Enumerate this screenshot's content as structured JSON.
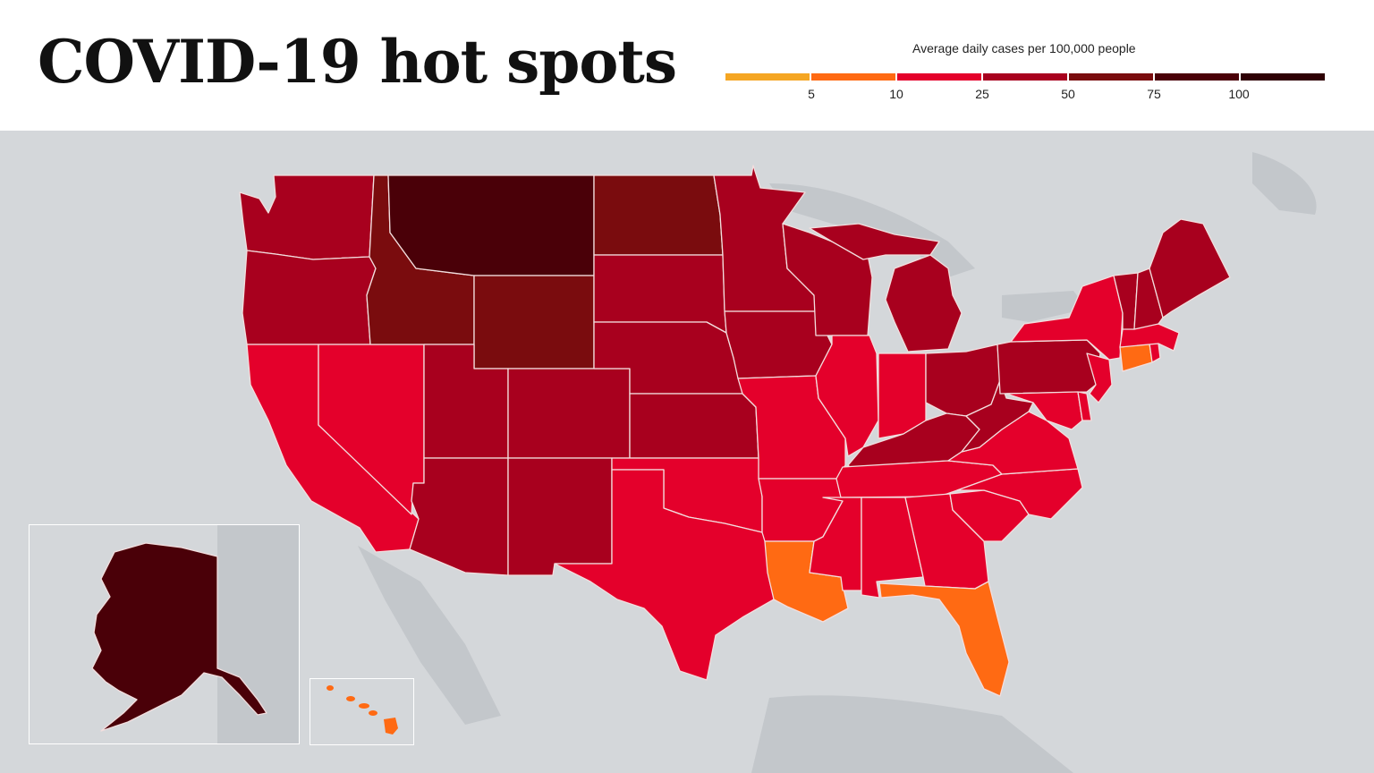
{
  "title": "COVID-19 hot spots",
  "legend": {
    "title": "Average daily cases per 100,000 people",
    "ticks": [
      "5",
      "10",
      "25",
      "50",
      "75",
      "100"
    ],
    "colors": [
      "#f5a623",
      "#ff6a13",
      "#e4002b",
      "#a8001e",
      "#7a0c0e",
      "#4a0008",
      "#2e0004"
    ]
  },
  "categories": {
    "c2": "#ff6a13",
    "c3": "#e4002b",
    "c4": "#a8001e",
    "c5": "#7a0c0e",
    "c6": "#4a0008"
  },
  "states": {
    "WA": "c4",
    "OR": "c4",
    "CA": "c3",
    "NV": "c3",
    "ID": "c5",
    "MT": "c6",
    "WY": "c5",
    "UT": "c4",
    "AZ": "c4",
    "CO": "c4",
    "NM": "c4",
    "ND": "c5",
    "SD": "c4",
    "NE": "c4",
    "KS": "c4",
    "OK": "c3",
    "TX": "c3",
    "MN": "c4",
    "IA": "c4",
    "MO": "c3",
    "AR": "c3",
    "LA": "c2",
    "WI": "c4",
    "IL": "c3",
    "MI": "c4",
    "IN": "c3",
    "OH": "c4",
    "KY": "c4",
    "TN": "c3",
    "MS": "c3",
    "AL": "c3",
    "GA": "c3",
    "FL": "c2",
    "SC": "c3",
    "NC": "c3",
    "VA": "c3",
    "WV": "c4",
    "PA": "c4",
    "NY": "c3",
    "NJ": "c3",
    "DE": "c3",
    "MD": "c3",
    "VT": "c4",
    "NH": "c4",
    "ME": "c4",
    "MA": "c3",
    "CT": "c2",
    "RI": "c3",
    "AK": "c6",
    "HI": "c2"
  }
}
